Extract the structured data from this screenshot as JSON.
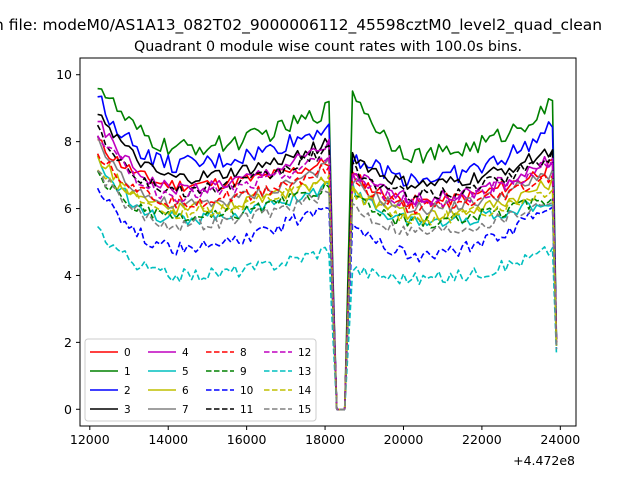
{
  "figure": {
    "suptitle": "n file: modeM0/AS1A13_082T02_9000006112_45598cztM0_level2_quad_clean",
    "title": "Quadrant 0 module wise count rates with 100.0s bins."
  },
  "chart_data": {
    "type": "line",
    "title": "Quadrant 0 module wise count rates with 100.0s bins.",
    "xlabel": "",
    "ylabel": "",
    "x_offset_label": "+4.472e8",
    "xlim": [
      11750,
      24400
    ],
    "ylim": [
      -0.5,
      10.5
    ],
    "xticks": [
      12000,
      14000,
      16000,
      18000,
      20000,
      22000,
      24000
    ],
    "xtick_labels": [
      "12000",
      "14000",
      "16000",
      "18000",
      "20000",
      "22000",
      "24000"
    ],
    "yticks": [
      0,
      2,
      4,
      6,
      8,
      10
    ],
    "ytick_labels": [
      "0",
      "2",
      "4",
      "6",
      "8",
      "10"
    ],
    "grid": false,
    "legend_position": "lower-left",
    "legend_columns": 4,
    "x_start": 12200,
    "x_step": 100,
    "gap": {
      "drop_start": 18200,
      "zero_from": 18300,
      "zero_to": 18500,
      "resume": 18700
    },
    "end_drop_x": 23900,
    "series": [
      {
        "name": "0",
        "color": "#ff0000",
        "dash": "solid",
        "start": 8.0,
        "seg1_min": 6.7,
        "seg1_end": 7.4,
        "seg2_start": 7.0,
        "seg2_min": 6.2,
        "seg2_end": 7.3,
        "end_value": 2.0
      },
      {
        "name": "1",
        "color": "#008000",
        "dash": "solid",
        "start": 9.8,
        "seg1_min": 7.8,
        "seg1_end": 9.0,
        "seg2_start": 9.6,
        "seg2_min": 7.6,
        "seg2_end": 9.1,
        "end_value": 2.2
      },
      {
        "name": "2",
        "color": "#0000ff",
        "dash": "solid",
        "start": 9.3,
        "seg1_min": 7.3,
        "seg1_end": 8.5,
        "seg2_start": 7.6,
        "seg2_min": 6.9,
        "seg2_end": 8.4,
        "end_value": 2.1
      },
      {
        "name": "3",
        "color": "#000000",
        "dash": "solid",
        "start": 9.0,
        "seg1_min": 6.9,
        "seg1_end": 8.0,
        "seg2_start": 7.6,
        "seg2_min": 6.7,
        "seg2_end": 7.8,
        "end_value": 2.1
      },
      {
        "name": "4",
        "color": "#bf00bf",
        "dash": "solid",
        "start": 8.6,
        "seg1_min": 6.6,
        "seg1_end": 7.9,
        "seg2_start": 7.1,
        "seg2_min": 6.3,
        "seg2_end": 7.5,
        "end_value": 2.0
      },
      {
        "name": "5",
        "color": "#00bfbf",
        "dash": "solid",
        "start": 7.4,
        "seg1_min": 5.7,
        "seg1_end": 6.7,
        "seg2_start": 6.6,
        "seg2_min": 5.6,
        "seg2_end": 6.3,
        "end_value": 1.9
      },
      {
        "name": "6",
        "color": "#bfbf00",
        "dash": "solid",
        "start": 7.6,
        "seg1_min": 6.0,
        "seg1_end": 6.9,
        "seg2_start": 6.6,
        "seg2_min": 5.8,
        "seg2_end": 6.8,
        "end_value": 1.9
      },
      {
        "name": "7",
        "color": "#808080",
        "dash": "solid",
        "start": 8.0,
        "seg1_min": 6.1,
        "seg1_end": 7.3,
        "seg2_start": 6.8,
        "seg2_min": 6.0,
        "seg2_end": 7.1,
        "end_value": 2.0
      },
      {
        "name": "8",
        "color": "#ff0000",
        "dash": "dashed",
        "start": 7.7,
        "seg1_min": 6.2,
        "seg1_end": 7.2,
        "seg2_start": 6.9,
        "seg2_min": 6.0,
        "seg2_end": 7.0,
        "end_value": 2.0
      },
      {
        "name": "9",
        "color": "#008000",
        "dash": "dashed",
        "start": 7.0,
        "seg1_min": 5.7,
        "seg1_end": 6.7,
        "seg2_start": 6.3,
        "seg2_min": 5.6,
        "seg2_end": 6.4,
        "end_value": 1.9
      },
      {
        "name": "10",
        "color": "#0000ff",
        "dash": "dashed",
        "start": 6.7,
        "seg1_min": 4.8,
        "seg1_end": 6.2,
        "seg2_start": 5.6,
        "seg2_min": 4.6,
        "seg2_end": 6.2,
        "end_value": 1.8
      },
      {
        "name": "11",
        "color": "#000000",
        "dash": "dashed",
        "start": 8.4,
        "seg1_min": 6.5,
        "seg1_end": 7.8,
        "seg2_start": 7.2,
        "seg2_min": 6.4,
        "seg2_end": 7.6,
        "end_value": 2.0
      },
      {
        "name": "12",
        "color": "#bf00bf",
        "dash": "dashed",
        "start": 8.3,
        "seg1_min": 6.4,
        "seg1_end": 7.6,
        "seg2_start": 7.0,
        "seg2_min": 6.2,
        "seg2_end": 7.4,
        "end_value": 2.0
      },
      {
        "name": "13",
        "color": "#00bfbf",
        "dash": "dashed",
        "start": 5.4,
        "seg1_min": 4.0,
        "seg1_end": 4.8,
        "seg2_start": 4.2,
        "seg2_min": 3.9,
        "seg2_end": 4.8,
        "end_value": 1.7
      },
      {
        "name": "14",
        "color": "#bfbf00",
        "dash": "dashed",
        "start": 7.3,
        "seg1_min": 5.9,
        "seg1_end": 6.9,
        "seg2_start": 6.5,
        "seg2_min": 5.7,
        "seg2_end": 6.6,
        "end_value": 1.9
      },
      {
        "name": "15",
        "color": "#808080",
        "dash": "dashed",
        "start": 7.1,
        "seg1_min": 5.5,
        "seg1_end": 6.5,
        "seg2_start": 6.1,
        "seg2_min": 5.3,
        "seg2_end": 6.3,
        "end_value": 1.8
      }
    ]
  }
}
